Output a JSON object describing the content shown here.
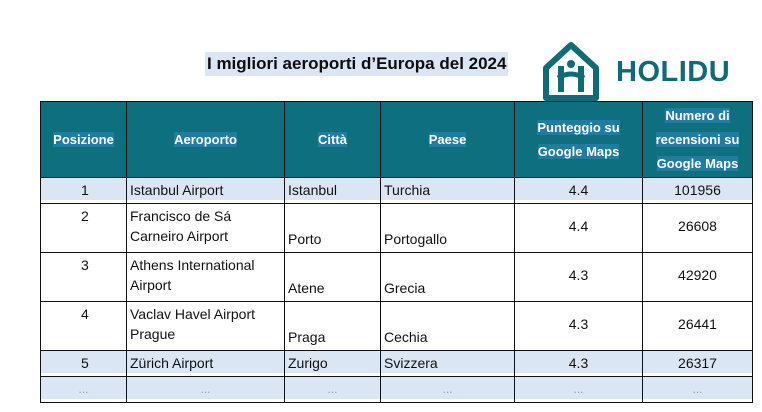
{
  "title": "I migliori aeroporti d’Europa del 2024",
  "logo": {
    "text": "HOLIDU",
    "color": "#0f6b78"
  },
  "table": {
    "headers": [
      "Posizione",
      "Aeroporto",
      "Città",
      "Paese",
      "Punteggio su Google Maps",
      "Numero di recensioni su Google Maps"
    ],
    "header_color": "#0e6f7e",
    "rows": [
      {
        "posizione": "1",
        "aeroporto": "Istanbul Airport",
        "citta": "Istanbul",
        "paese": "Turchia",
        "punteggio": "4.4",
        "recensioni": "101956"
      },
      {
        "posizione": "2",
        "aeroporto": "Francisco de Sá Carneiro Airport",
        "citta": "Porto",
        "paese": "Portogallo",
        "punteggio": "4.4",
        "recensioni": "26608"
      },
      {
        "posizione": "3",
        "aeroporto": "Athens International Airport",
        "citta": "Atene",
        "paese": "Grecia",
        "punteggio": "4.3",
        "recensioni": "42920"
      },
      {
        "posizione": "4",
        "aeroporto": "Vaclav Havel Airport Prague",
        "citta": "Praga",
        "paese": "Cechia",
        "punteggio": "4.3",
        "recensioni": "26441"
      },
      {
        "posizione": "5",
        "aeroporto": "Zürich Airport",
        "citta": "Zurigo",
        "paese": "Svizzera",
        "punteggio": "4.3",
        "recensioni": "26317"
      },
      {
        "posizione": "...",
        "aeroporto": "...",
        "citta": "...",
        "paese": "...",
        "punteggio": "...",
        "recensioni": "..."
      }
    ]
  }
}
